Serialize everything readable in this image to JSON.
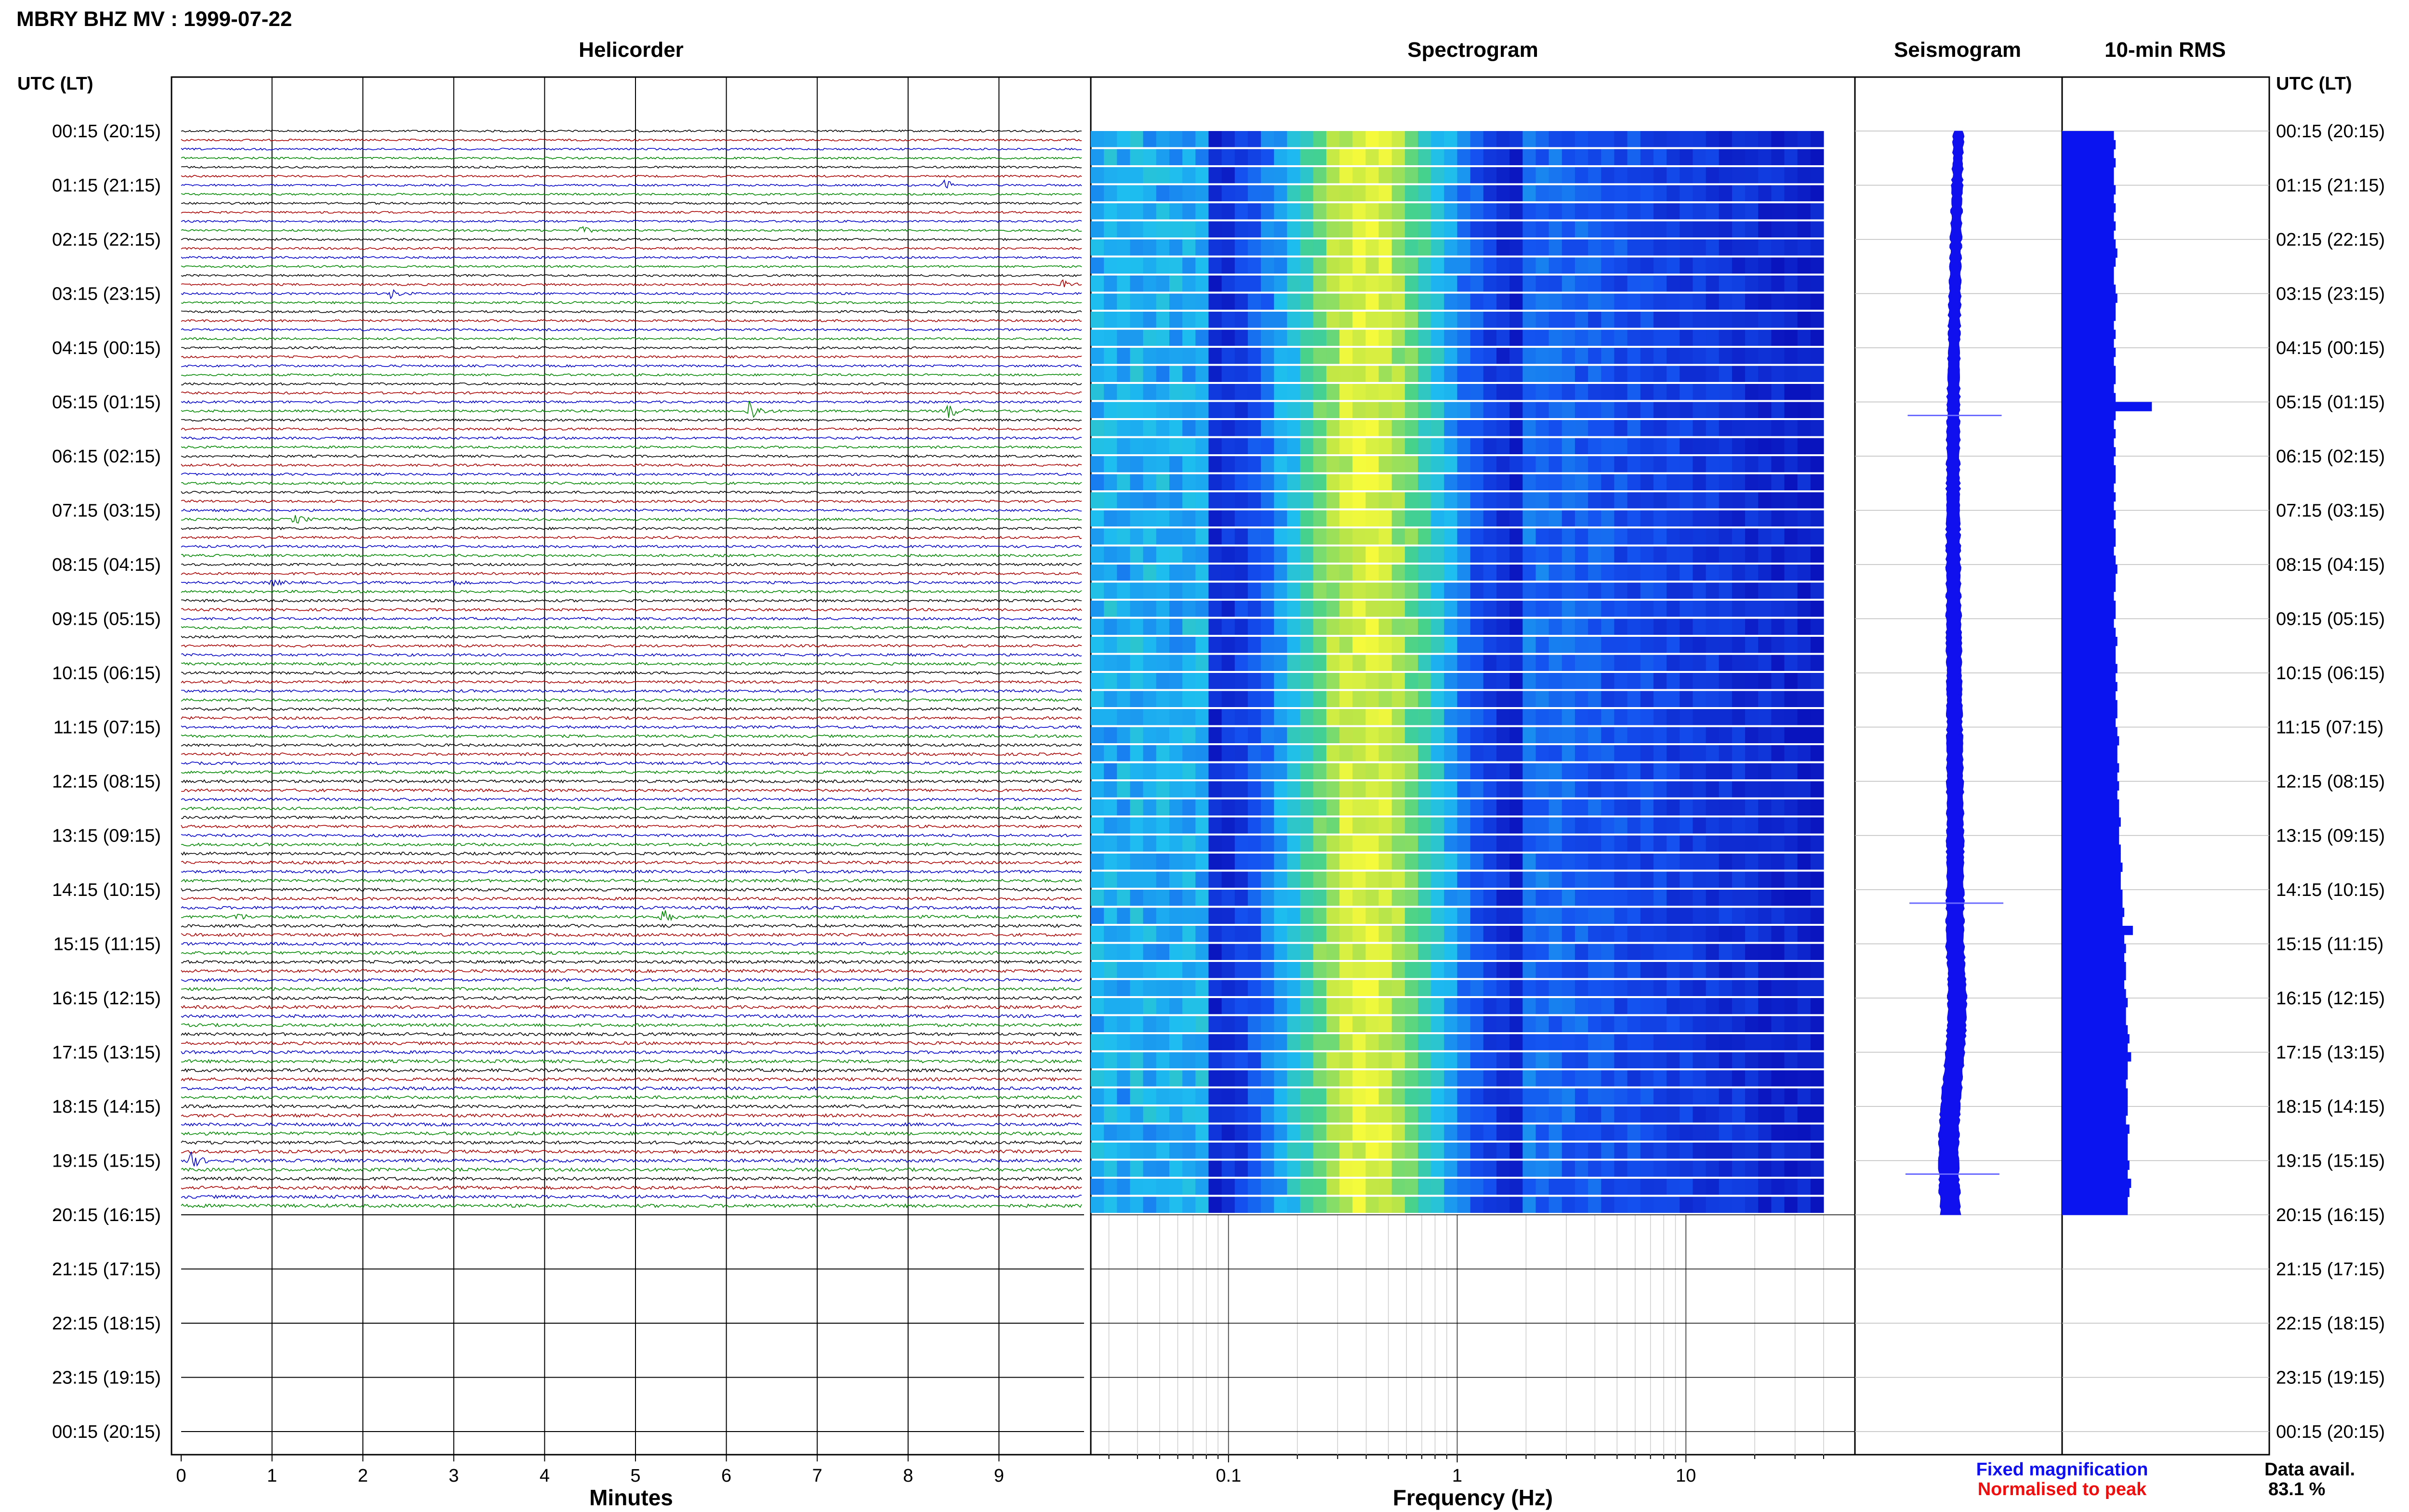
{
  "chart_data": {
    "type": "heatmap",
    "title": "MBRY BHZ MV : 1999-07-22",
    "panels": {
      "helicorder": "Helicorder",
      "spectrogram": "Spectrogram",
      "seismogram": "Seismogram",
      "rms": "10-min RMS"
    },
    "time_axis_label": "UTC (LT)",
    "time_labels": [
      "00:15 (20:15)",
      "01:15 (21:15)",
      "02:15 (22:15)",
      "03:15 (23:15)",
      "04:15 (00:15)",
      "05:15 (01:15)",
      "06:15 (02:15)",
      "07:15 (03:15)",
      "08:15 (04:15)",
      "09:15 (05:15)",
      "10:15 (06:15)",
      "11:15 (07:15)",
      "12:15 (08:15)",
      "13:15 (09:15)",
      "14:15 (10:15)",
      "15:15 (11:15)",
      "16:15 (12:15)",
      "17:15 (13:15)",
      "18:15 (14:15)",
      "19:15 (15:15)",
      "20:15 (16:15)",
      "21:15 (17:15)",
      "22:15 (18:15)",
      "23:15 (19:15)",
      "00:15 (20:15)"
    ],
    "helicorder_xlabel": "Minutes",
    "helicorder_xticks": [
      "0",
      "1",
      "2",
      "3",
      "4",
      "5",
      "6",
      "7",
      "8",
      "9"
    ],
    "helicorder_xlim": [
      0,
      10
    ],
    "helicorder_trace_colors": [
      "#000000",
      "#aa0000",
      "#0000cc",
      "#008800"
    ],
    "helicorder_rows_with_data": 120,
    "helicorder_events": [
      {
        "row": 6,
        "minute": 8.4,
        "amp": 2.2
      },
      {
        "row": 11,
        "minute": 4.4,
        "amp": 1.5
      },
      {
        "row": 18,
        "minute": 2.3,
        "amp": 2.0
      },
      {
        "row": 17,
        "minute": 9.7,
        "amp": 1.6
      },
      {
        "row": 31,
        "minute": 6.25,
        "amp": 5.5
      },
      {
        "row": 31,
        "minute": 8.45,
        "amp": 3.2
      },
      {
        "row": 43,
        "minute": 1.25,
        "amp": 2.0
      },
      {
        "row": 50,
        "minute": 1.0,
        "amp": 1.4
      },
      {
        "row": 50,
        "minute": 2.95,
        "amp": 1.4
      },
      {
        "row": 87,
        "minute": 0.6,
        "amp": 1.6
      },
      {
        "row": 87,
        "minute": 5.3,
        "amp": 3.0
      },
      {
        "row": 114,
        "minute": 0.1,
        "amp": 3.5
      },
      {
        "row": 114,
        "minute": 9.95,
        "amp": 3.5
      }
    ],
    "spectrogram_xlabel": "Frequency (Hz)",
    "spectrogram_xticks": [
      "0.1",
      "1",
      "10"
    ],
    "spectrogram_xlim": [
      0.025,
      40
    ],
    "spectrogram_xscale": "log",
    "spectrogram_peak_hz": 0.4,
    "spectrogram_data_hours": 20,
    "seismogram_spikes_hour": [
      5,
      14,
      19
    ],
    "rms_values": [
      0.3,
      0.31,
      0.3,
      0.31,
      0.3,
      0.3,
      0.31,
      0.3,
      0.31,
      0.3,
      0.31,
      0.3,
      0.31,
      0.32,
      0.31,
      0.3,
      0.3,
      0.31,
      0.32,
      0.31,
      0.31,
      0.3,
      0.31,
      0.3,
      0.31,
      0.3,
      0.31,
      0.31,
      0.3,
      0.31,
      0.52,
      0.31,
      0.3,
      0.31,
      0.3,
      0.31,
      0.3,
      0.31,
      0.31,
      0.3,
      0.31,
      0.3,
      0.31,
      0.3,
      0.31,
      0.31,
      0.3,
      0.31,
      0.32,
      0.31,
      0.31,
      0.3,
      0.31,
      0.31,
      0.3,
      0.31,
      0.32,
      0.31,
      0.31,
      0.32,
      0.31,
      0.32,
      0.31,
      0.32,
      0.32,
      0.31,
      0.32,
      0.33,
      0.32,
      0.32,
      0.33,
      0.32,
      0.33,
      0.32,
      0.33,
      0.33,
      0.34,
      0.33,
      0.33,
      0.34,
      0.34,
      0.35,
      0.34,
      0.34,
      0.35,
      0.35,
      0.36,
      0.35,
      0.41,
      0.36,
      0.37,
      0.36,
      0.37,
      0.37,
      0.36,
      0.37,
      0.38,
      0.37,
      0.37,
      0.38,
      0.39,
      0.38,
      0.4,
      0.38,
      0.38,
      0.37,
      0.38,
      0.38,
      0.38,
      0.37,
      0.39,
      0.38,
      0.38,
      0.38,
      0.39,
      0.38,
      0.4,
      0.39,
      0.38,
      0.38
    ],
    "rms_xlim": [
      0,
      1.2
    ],
    "colors": {
      "fixed": "#1010ee",
      "normalised": "#ee1010",
      "rms": "#0a14f0",
      "frame": "#000000",
      "grid": "#bbbbbb"
    }
  },
  "legend": {
    "fixed": "Fixed magnification",
    "normalised": "Normalised to peak"
  },
  "availability": {
    "label": "Data avail.",
    "value": "83.1 %"
  }
}
